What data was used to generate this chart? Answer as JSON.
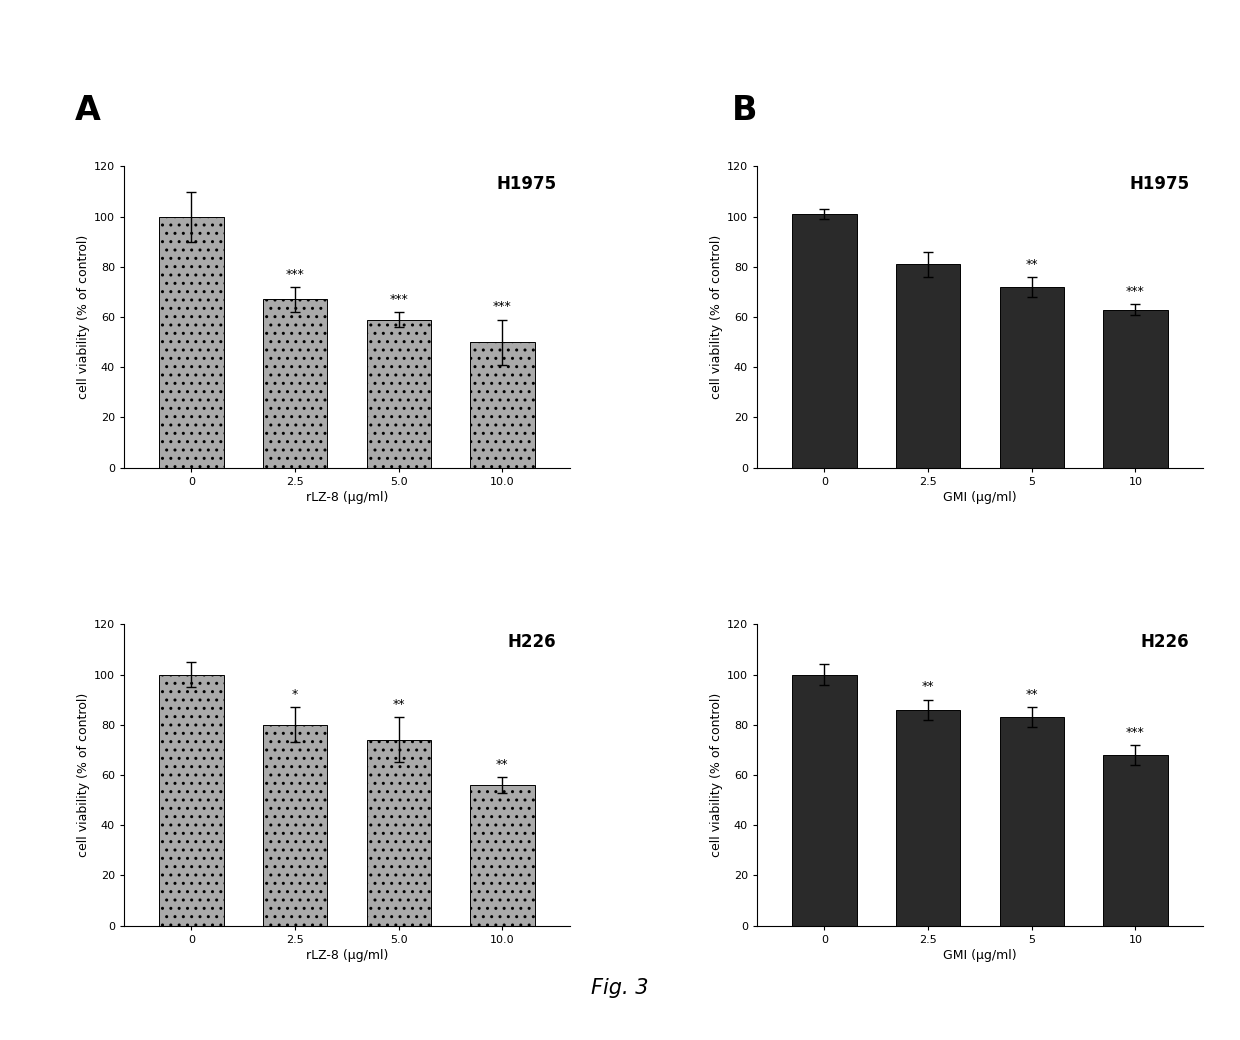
{
  "panel_A_top": {
    "title": "H1975",
    "xlabel": "rLZ-8 (μg/ml)",
    "ylabel": "cell viability (% of control)",
    "categories": [
      "0",
      "2.5",
      "5.0",
      "10.0"
    ],
    "values": [
      100,
      67,
      59,
      50
    ],
    "errors": [
      10,
      5,
      3,
      9
    ],
    "significance": [
      "",
      "***",
      "***",
      "***"
    ],
    "ylim": [
      0,
      120
    ],
    "yticks": [
      0,
      20,
      40,
      60,
      80,
      100,
      120
    ],
    "bar_color": "#aaaaaa",
    "bar_hatch": ".."
  },
  "panel_A_bottom": {
    "title": "H226",
    "xlabel": "rLZ-8 (μg/ml)",
    "ylabel": "cell viability (% of control)",
    "categories": [
      "0",
      "2.5",
      "5.0",
      "10.0"
    ],
    "values": [
      100,
      80,
      74,
      56
    ],
    "errors": [
      5,
      7,
      9,
      3
    ],
    "significance": [
      "",
      "*",
      "**",
      "**"
    ],
    "ylim": [
      0,
      120
    ],
    "yticks": [
      0,
      20,
      40,
      60,
      80,
      100,
      120
    ],
    "bar_color": "#aaaaaa",
    "bar_hatch": ".."
  },
  "panel_B_top": {
    "title": "H1975",
    "xlabel": "GMI (μg/ml)",
    "ylabel": "cell viability (% of control)",
    "categories": [
      "0",
      "2.5",
      "5",
      "10"
    ],
    "values": [
      101,
      81,
      72,
      63
    ],
    "errors": [
      2,
      5,
      4,
      2
    ],
    "significance": [
      "",
      "",
      "**",
      "***"
    ],
    "ylim": [
      0,
      120
    ],
    "yticks": [
      0,
      20,
      40,
      60,
      80,
      100,
      120
    ],
    "bar_color": "#2a2a2a",
    "bar_hatch": ""
  },
  "panel_B_bottom": {
    "title": "H226",
    "xlabel": "GMI (μg/ml)",
    "ylabel": "cell viability (% of control)",
    "categories": [
      "0",
      "2.5",
      "5",
      "10"
    ],
    "values": [
      100,
      86,
      83,
      68
    ],
    "errors": [
      4,
      4,
      4,
      4
    ],
    "significance": [
      "",
      "**",
      "**",
      "***"
    ],
    "ylim": [
      0,
      120
    ],
    "yticks": [
      0,
      20,
      40,
      60,
      80,
      100,
      120
    ],
    "bar_color": "#2a2a2a",
    "bar_hatch": ""
  },
  "figure_label_A": "A",
  "figure_label_B": "B",
  "figure_caption": "Fig. 3",
  "background_color": "#ffffff",
  "fontsize_title": 12,
  "fontsize_label": 9,
  "fontsize_tick": 8,
  "fontsize_sig": 9,
  "fontsize_panel_label": 24,
  "fontsize_caption": 15
}
